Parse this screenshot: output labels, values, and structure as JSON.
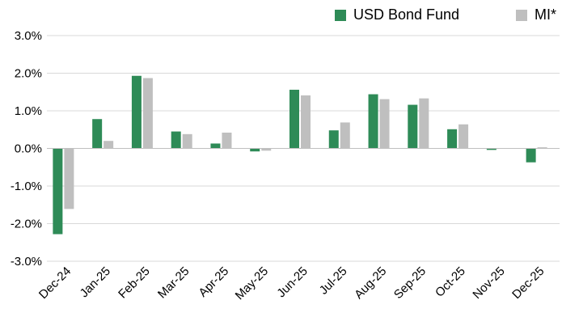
{
  "chart_data": {
    "type": "bar",
    "categories": [
      "Dec-24",
      "Jan-25",
      "Feb-25",
      "Mar-25",
      "Apr-25",
      "May-25",
      "Jun-25",
      "Jul-25",
      "Aug-25",
      "Sep-25",
      "Oct-25",
      "Nov-25",
      "Dec-25"
    ],
    "series": [
      {
        "name": "USD Bond Fund",
        "color": "#2e8b57",
        "values": [
          -2.28,
          0.78,
          1.93,
          0.45,
          0.13,
          -0.08,
          1.56,
          0.48,
          1.44,
          1.16,
          0.51,
          -0.04,
          -0.37
        ]
      },
      {
        "name": "MI*",
        "color": "#bfbfbf",
        "values": [
          -1.61,
          0.2,
          1.87,
          0.38,
          0.42,
          -0.06,
          1.41,
          0.69,
          1.31,
          1.33,
          0.64,
          0.0,
          0.03
        ]
      }
    ],
    "yticks": [
      "3.0%",
      "2.0%",
      "1.0%",
      "0.0%",
      "-1.0%",
      "-2.0%",
      "-3.0%"
    ],
    "ylim": [
      -3,
      3
    ],
    "grid": true,
    "legend": "top-right",
    "title": "",
    "xlabel": "",
    "ylabel": ""
  }
}
